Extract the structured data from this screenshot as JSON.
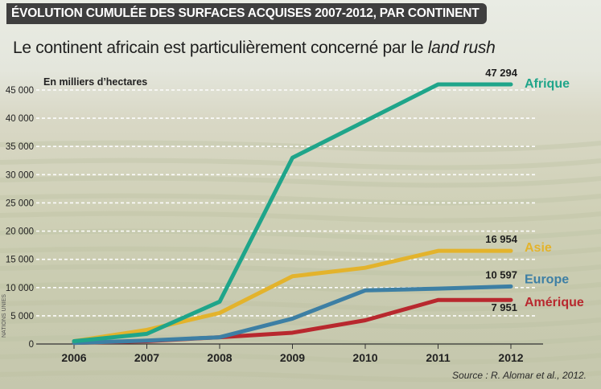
{
  "header": {
    "title": "ÉVOLUTION CUMULÉE DES SURFACES ACQUISES 2007-2012, PAR CONTINENT",
    "subtitle_main": "Le continent africain est particulièrement concerné par le ",
    "subtitle_italic": "land rush"
  },
  "footer": {
    "source": "Source : R. Alomar et al., 2012.",
    "credit": "NATIONS UNIES"
  },
  "chart_data": {
    "type": "line",
    "title": "Le continent africain est particulièrement concerné par le land rush",
    "ylabel": "En milliers d’hectares",
    "xlabel": "",
    "ylim": [
      0,
      45000
    ],
    "y_ticks": [
      0,
      5000,
      10000,
      15000,
      20000,
      25000,
      30000,
      35000,
      40000,
      45000
    ],
    "y_tick_labels": [
      "0",
      "5 000",
      "10 000",
      "15 000",
      "20 000",
      "25 000",
      "30 000",
      "35 000",
      "40 000",
      "45 000"
    ],
    "categories": [
      "2006",
      "2007",
      "2008",
      "2009",
      "2010",
      "2011",
      "2012"
    ],
    "grid": true,
    "series": [
      {
        "name": "Afrique",
        "color": "#1fa58a",
        "values": [
          500,
          1800,
          7500,
          33000,
          39500,
          46000,
          46000
        ],
        "end_label": "47 294"
      },
      {
        "name": "Asie",
        "color": "#e3b32c",
        "values": [
          500,
          2500,
          5500,
          12000,
          13500,
          16500,
          16500
        ],
        "end_label": "16 954"
      },
      {
        "name": "Europe",
        "color": "#3d7fa4",
        "values": [
          200,
          600,
          1200,
          4500,
          9500,
          9800,
          10200
        ],
        "end_label": "10 597"
      },
      {
        "name": "Amérique",
        "color": "#b8282e",
        "values": [
          200,
          500,
          1200,
          2000,
          4200,
          7800,
          7800
        ],
        "end_label": "7 951"
      }
    ]
  }
}
